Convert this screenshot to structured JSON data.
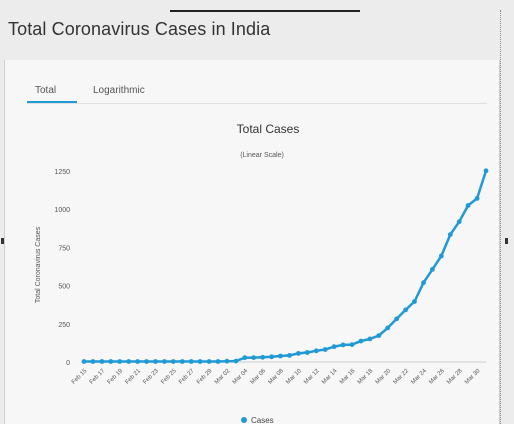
{
  "page": {
    "title": "Total Coronavirus Cases in India"
  },
  "tabs": [
    {
      "label": "Total"
    },
    {
      "label": "Logarithmic"
    }
  ],
  "chart_data": {
    "type": "line",
    "title": "Total Cases",
    "subtitle": "(Linear Scale)",
    "xlabel": "",
    "ylabel": "Total Coronavirus Cases",
    "ylim": [
      0,
      1250
    ],
    "yticks": [
      0,
      250,
      500,
      750,
      1000,
      1250
    ],
    "ytick_labels": [
      "0",
      "250",
      "500",
      "750",
      "1000",
      "1250"
    ],
    "xtick_labels": [
      "Feb 15",
      "Feb 17",
      "Feb 19",
      "Feb 21",
      "Feb 23",
      "Feb 25",
      "Feb 27",
      "Feb 29",
      "Mar 02",
      "Mar 04",
      "Mar 06",
      "Mar 08",
      "Mar 10",
      "Mar 12",
      "Mar 14",
      "Mar 16",
      "Mar 18",
      "Mar 20",
      "Mar 22",
      "Mar 24",
      "Mar 26",
      "Mar 28",
      "Mar 30"
    ],
    "x": [
      "Feb 15",
      "Feb 16",
      "Feb 17",
      "Feb 18",
      "Feb 19",
      "Feb 20",
      "Feb 21",
      "Feb 22",
      "Feb 23",
      "Feb 24",
      "Feb 25",
      "Feb 26",
      "Feb 27",
      "Feb 28",
      "Feb 29",
      "Mar 01",
      "Mar 02",
      "Mar 03",
      "Mar 04",
      "Mar 05",
      "Mar 06",
      "Mar 07",
      "Mar 08",
      "Mar 09",
      "Mar 10",
      "Mar 11",
      "Mar 12",
      "Mar 13",
      "Mar 14",
      "Mar 15",
      "Mar 16",
      "Mar 17",
      "Mar 18",
      "Mar 19",
      "Mar 20",
      "Mar 21",
      "Mar 22",
      "Mar 23",
      "Mar 24",
      "Mar 25",
      "Mar 26",
      "Mar 27",
      "Mar 28",
      "Mar 29",
      "Mar 30",
      "Mar 31"
    ],
    "series": [
      {
        "name": "Cases",
        "color": "#1f9ad6",
        "values": [
          3,
          3,
          3,
          3,
          3,
          3,
          3,
          3,
          3,
          3,
          3,
          3,
          3,
          3,
          3,
          3,
          5,
          6,
          28,
          29,
          31,
          34,
          39,
          43,
          56,
          62,
          73,
          82,
          100,
          112,
          114,
          137,
          151,
          173,
          223,
          283,
          341,
          396,
          519,
          606,
          694,
          834,
          918,
          1024,
          1071,
          1251
        ]
      }
    ],
    "legend": {
      "position": "bottom-center"
    },
    "grid": false
  }
}
